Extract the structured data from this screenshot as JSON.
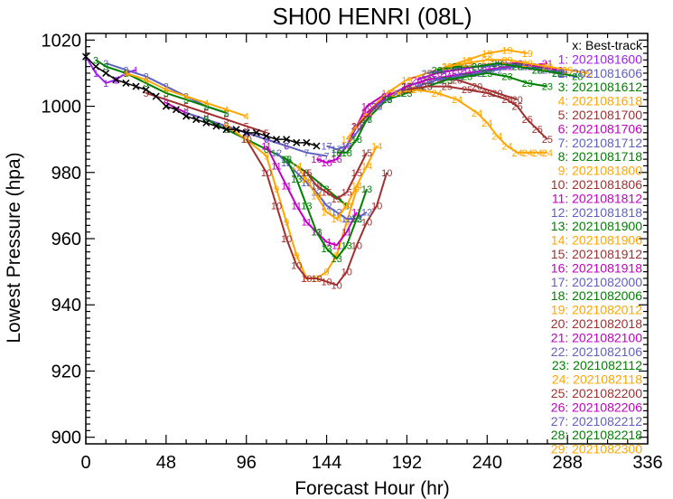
{
  "chart_data": {
    "type": "line",
    "title": "SH00  HENRI (08L)",
    "xlabel": "Forecast Hour (hr)",
    "ylabel": "Lowest Pressure (hpa)",
    "xlim": [
      0,
      336
    ],
    "ylim": [
      898,
      1022
    ],
    "x_ticks": [
      0,
      48,
      96,
      144,
      192,
      240,
      288,
      336
    ],
    "y_ticks": [
      900,
      920,
      940,
      960,
      980,
      1000,
      1020
    ],
    "grid": false,
    "legend_position": "right",
    "best_track": {
      "label": "x: Best-track",
      "color": "#000000",
      "marker": "x",
      "x": [
        0,
        6,
        12,
        18,
        24,
        30,
        36,
        42,
        48,
        54,
        60,
        66,
        72,
        78,
        84,
        90,
        96,
        102,
        108,
        114,
        120,
        126,
        132,
        138
      ],
      "y": [
        1015,
        1012,
        1010,
        1008,
        1007,
        1006,
        1005,
        1003,
        1000,
        999,
        997,
        996,
        995,
        994,
        993,
        993,
        992,
        992,
        991,
        990,
        990,
        989,
        989,
        988
      ]
    },
    "series": [
      {
        "name": "1: 2021081600",
        "mark": "1",
        "color": "#A020F0",
        "x": [
          0,
          6,
          12,
          18,
          24,
          30
        ],
        "y": [
          1015,
          1010,
          1007,
          1008,
          1010,
          1011
        ]
      },
      {
        "name": "2: 2021081606",
        "mark": "2",
        "color": "#6060C0",
        "x": [
          12,
          24,
          36,
          48,
          60,
          72,
          84
        ],
        "y": [
          1013,
          1011,
          1009,
          1006,
          1003,
          1000,
          998
        ]
      },
      {
        "name": "3: 2021081612",
        "mark": "3",
        "color": "#008000",
        "x": [
          6,
          12,
          24,
          36,
          48,
          60,
          72,
          84
        ],
        "y": [
          1014,
          1012,
          1010,
          1007,
          1004,
          1002,
          1000,
          998
        ]
      },
      {
        "name": "4: 2021081618",
        "mark": "4",
        "color": "#FFA500",
        "x": [
          24,
          36,
          48,
          60,
          72,
          84,
          96
        ],
        "y": [
          1010,
          1008,
          1005,
          1003,
          1001,
          999,
          997
        ]
      },
      {
        "name": "5: 2021081700",
        "mark": "5",
        "color": "#A03030",
        "x": [
          36,
          48,
          60,
          72,
          84,
          96,
          108
        ],
        "y": [
          1004,
          1002,
          1000,
          998,
          996,
          994,
          992
        ]
      },
      {
        "name": "6: 2021081706",
        "mark": "6",
        "color": "#C000C0",
        "x": [
          48,
          60,
          72,
          84,
          96,
          108,
          120
        ],
        "y": [
          1001,
          998,
          996,
          994,
          992,
          990,
          988
        ]
      },
      {
        "name": "7: 2021081712",
        "mark": "7",
        "color": "#6060C0",
        "x": [
          60,
          72,
          84,
          96,
          108,
          120,
          132,
          144
        ],
        "y": [
          998,
          996,
          994,
          992,
          990,
          988,
          986,
          985
        ]
      },
      {
        "name": "8: 2021081718",
        "mark": "8",
        "color": "#008000",
        "x": [
          72,
          84,
          96,
          108,
          120,
          132,
          144,
          156
        ],
        "y": [
          996,
          993,
          990,
          987,
          984,
          980,
          975,
          970
        ]
      },
      {
        "name": "9: 2021081800",
        "mark": "9",
        "color": "#FFA500",
        "x": [
          84,
          96,
          108,
          114,
          120,
          126,
          132,
          138,
          144,
          150,
          156,
          162
        ],
        "y": [
          994,
          990,
          985,
          975,
          965,
          955,
          948,
          948,
          950,
          955,
          965,
          975
        ]
      },
      {
        "name": "10: 2021081806",
        "mark": "10",
        "color": "#A03030",
        "x": [
          96,
          108,
          114,
          120,
          126,
          132,
          138,
          144,
          150,
          156,
          162,
          168,
          174,
          180
        ],
        "y": [
          990,
          980,
          970,
          960,
          952,
          948,
          948,
          947,
          946,
          950,
          958,
          965,
          970,
          980
        ]
      },
      {
        "name": "11: 2021081812",
        "mark": "11",
        "color": "#C000C0",
        "x": [
          108,
          114,
          120,
          126,
          132,
          138,
          144,
          150,
          156,
          162
        ],
        "y": [
          988,
          982,
          976,
          970,
          965,
          962,
          959,
          958,
          962,
          968
        ]
      },
      {
        "name": "12: 2021081818",
        "mark": "12",
        "color": "#6060C0",
        "x": [
          114,
          120,
          126,
          132,
          138,
          144,
          150,
          156,
          162,
          168
        ],
        "y": [
          986,
          983,
          980,
          977,
          974,
          970,
          968,
          966,
          966,
          968
        ]
      },
      {
        "name": "13: 2021081900",
        "mark": "13",
        "color": "#008000",
        "x": [
          120,
          126,
          132,
          138,
          144,
          150,
          156,
          162,
          168
        ],
        "y": [
          984,
          978,
          970,
          962,
          957,
          954,
          958,
          966,
          975
        ]
      },
      {
        "name": "14: 2021081906",
        "mark": "14",
        "color": "#FFA500",
        "x": [
          126,
          132,
          138,
          144,
          150,
          156,
          162,
          168,
          174
        ],
        "y": [
          982,
          978,
          973,
          968,
          966,
          970,
          976,
          982,
          988
        ]
      },
      {
        "name": "15: 2021081912",
        "mark": "15",
        "color": "#A03030",
        "x": [
          132,
          138,
          144,
          150,
          156,
          162,
          168
        ],
        "y": [
          980,
          976,
          974,
          972,
          974,
          980,
          986
        ]
      },
      {
        "name": "16: 2021081918",
        "mark": "16",
        "color": "#C000C0",
        "x": [
          138,
          144,
          150,
          156,
          162,
          168,
          180
        ],
        "y": [
          984,
          983,
          984,
          988,
          994,
          1000,
          1004
        ]
      },
      {
        "name": "17: 2021082000",
        "mark": "17",
        "color": "#6060C0",
        "x": [
          144,
          150,
          156,
          162,
          168,
          180,
          192
        ],
        "y": [
          988,
          987,
          988,
          992,
          996,
          1002,
          1006
        ]
      },
      {
        "name": "18: 2021082006",
        "mark": "18",
        "color": "#008000",
        "x": [
          150,
          156,
          162,
          168,
          180,
          192,
          204
        ],
        "y": [
          986,
          986,
          990,
          996,
          1002,
          1006,
          1008
        ]
      },
      {
        "name": "19: 2021082012",
        "mark": "19",
        "color": "#FFA500",
        "x": [
          156,
          168,
          180,
          192,
          204,
          216,
          228,
          240,
          252,
          264
        ],
        "y": [
          990,
          998,
          1004,
          1008,
          1010,
          1012,
          1014,
          1016,
          1017,
          1016
        ]
      },
      {
        "name": "20: 2021082018",
        "mark": "20",
        "color": "#A03030",
        "x": [
          162,
          174,
          186,
          198,
          210,
          222,
          234,
          246,
          258
        ],
        "y": [
          994,
          1000,
          1004,
          1006,
          1008,
          1008,
          1006,
          1004,
          1002
        ]
      },
      {
        "name": "21: 2021082100",
        "mark": "21",
        "color": "#C000C0",
        "x": [
          168,
          180,
          192,
          204,
          216,
          228,
          240,
          252,
          264,
          276
        ],
        "y": [
          998,
          1003,
          1006,
          1008,
          1009,
          1010,
          1011,
          1012,
          1012,
          1013
        ]
      },
      {
        "name": "22: 2021082106",
        "mark": "22",
        "color": "#6060C0",
        "x": [
          174,
          186,
          198,
          210,
          222,
          234,
          246,
          258,
          270,
          282
        ],
        "y": [
          1000,
          1004,
          1006,
          1008,
          1009,
          1010,
          1011,
          1012,
          1011,
          1010
        ]
      },
      {
        "name": "23: 2021082112",
        "mark": "23",
        "color": "#008000",
        "x": [
          180,
          192,
          204,
          216,
          228,
          240,
          252,
          264,
          276
        ],
        "y": [
          1002,
          1004,
          1006,
          1008,
          1009,
          1010,
          1009,
          1007,
          1006
        ]
      },
      {
        "name": "24: 2021082118",
        "mark": "24",
        "color": "#FFA500",
        "x": [
          186,
          198,
          210,
          222,
          234,
          240,
          246,
          252,
          258,
          264,
          270,
          276
        ],
        "y": [
          1004,
          1005,
          1004,
          1002,
          998,
          995,
          991,
          988,
          986,
          986,
          986,
          986
        ]
      },
      {
        "name": "25: 2021082200",
        "mark": "25",
        "color": "#A03030",
        "x": [
          192,
          204,
          216,
          228,
          240,
          252,
          258,
          264,
          270,
          276
        ],
        "y": [
          1005,
          1006,
          1006,
          1005,
          1004,
          1002,
          1000,
          996,
          993,
          990
        ]
      },
      {
        "name": "26: 2021082206",
        "mark": "26",
        "color": "#C000C0",
        "x": [
          198,
          210,
          222,
          234,
          246,
          258,
          270,
          282
        ],
        "y": [
          1008,
          1010,
          1011,
          1012,
          1013,
          1013,
          1012,
          1011
        ]
      },
      {
        "name": "27: 2021082212",
        "mark": "27",
        "color": "#6060C0",
        "x": [
          204,
          216,
          228,
          240,
          252,
          264,
          276,
          288
        ],
        "y": [
          1010,
          1011,
          1012,
          1012,
          1013,
          1012,
          1011,
          1010
        ]
      },
      {
        "name": "28: 2021082218",
        "mark": "28",
        "color": "#008000",
        "x": [
          210,
          222,
          234,
          246,
          258,
          270,
          282,
          294
        ],
        "y": [
          1011,
          1012,
          1012,
          1013,
          1012,
          1011,
          1010,
          1009
        ]
      },
      {
        "name": "29: 2021082300",
        "mark": "29",
        "color": "#FFA500",
        "x": [
          216,
          228,
          240,
          252,
          264,
          276,
          288,
          300
        ],
        "y": [
          1012,
          1013,
          1014,
          1014,
          1013,
          1012,
          1011,
          1010
        ]
      }
    ]
  }
}
